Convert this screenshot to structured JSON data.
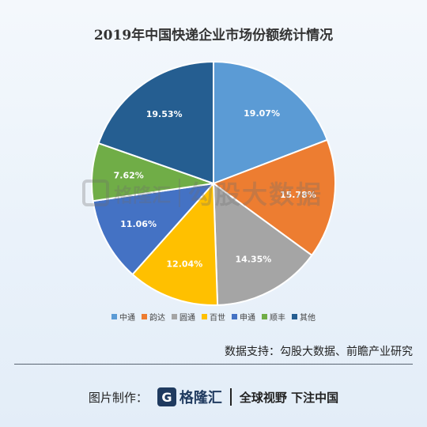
{
  "chart_data": {
    "type": "pie",
    "title": "2019年中国快递企业市场份额统计情况",
    "categories": [
      "中通",
      "韵达",
      "圆通",
      "百世",
      "申通",
      "顺丰",
      "其他"
    ],
    "values": [
      19.07,
      15.78,
      14.35,
      12.04,
      11.06,
      7.62,
      19.53
    ],
    "labels": [
      "19.07%",
      "15.78%",
      "14.35%",
      "12.04%",
      "11.06%",
      "7.62%",
      "19.53%"
    ],
    "colors": [
      "#5b9bd5",
      "#ed7d31",
      "#a5a5a5",
      "#ffc000",
      "#4472c4",
      "#70ad47",
      "#255e91"
    ],
    "legend_position": "bottom",
    "start_angle": "12 o'clock, clockwise"
  },
  "watermark": {
    "brand": "格隆汇",
    "text": "勾股大数据"
  },
  "source": "数据支持：勾股大数据、前瞻产业研究",
  "footer": {
    "label": "图片制作：",
    "logo_letter": "G",
    "brand": "格隆汇",
    "slogan": "全球视野 下注中国"
  }
}
